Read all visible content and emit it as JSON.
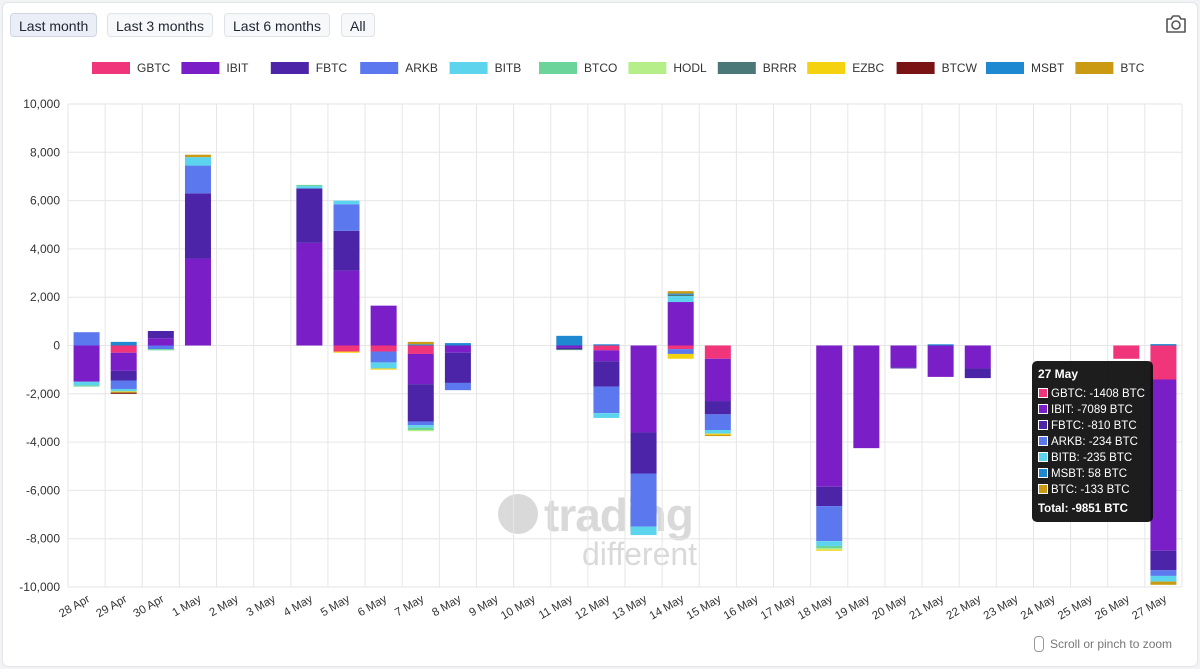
{
  "range_buttons": [
    {
      "label": "Last month",
      "active": true
    },
    {
      "label": "Last 3 months",
      "active": false
    },
    {
      "label": "Last 6 months",
      "active": false
    },
    {
      "label": "All",
      "active": false
    }
  ],
  "icons": {
    "camera": "camera-icon",
    "scroll": "phone-icon"
  },
  "watermark": {
    "line1": "trading",
    "line2": "different"
  },
  "scroll_hint": "Scroll or pinch to zoom",
  "chart_data": {
    "type": "bar",
    "stacked": true,
    "ylim": [
      -10000,
      10000
    ],
    "yticks": [
      10000,
      8000,
      6000,
      4000,
      2000,
      0,
      -2000,
      -4000,
      -6000,
      -8000,
      -10000
    ],
    "grid": true,
    "legend_position": "top",
    "categories": [
      "28 Apr",
      "29 Apr",
      "30 Apr",
      "1 May",
      "2 May",
      "3 May",
      "4 May",
      "5 May",
      "6 May",
      "7 May",
      "8 May",
      "9 May",
      "10 May",
      "11 May",
      "12 May",
      "13 May",
      "14 May",
      "15 May",
      "16 May",
      "17 May",
      "18 May",
      "19 May",
      "20 May",
      "21 May",
      "22 May",
      "23 May",
      "24 May",
      "25 May",
      "26 May",
      "27 May"
    ],
    "series": [
      {
        "name": "GBTC",
        "color": "#f0357a",
        "values": [
          0,
          -300,
          0,
          0,
          0,
          0,
          0,
          -250,
          -250,
          -350,
          0,
          0,
          0,
          0,
          -200,
          0,
          -150,
          -550,
          0,
          0,
          0,
          0,
          0,
          0,
          0,
          0,
          0,
          0,
          -550,
          -1408
        ]
      },
      {
        "name": "IBIT",
        "color": "#7a1fc7",
        "values": [
          -1500,
          -750,
          300,
          3600,
          0,
          0,
          4250,
          3100,
          1650,
          -1250,
          -300,
          0,
          0,
          -100,
          -450,
          -3600,
          1800,
          -1750,
          0,
          0,
          -5850,
          -4250,
          -900,
          -1300,
          -950,
          0,
          0,
          0,
          0,
          -7089
        ]
      },
      {
        "name": "FBTC",
        "color": "#4c24a8",
        "values": [
          0,
          -400,
          300,
          2700,
          0,
          0,
          2250,
          1650,
          0,
          -1550,
          -1250,
          0,
          0,
          -50,
          -1050,
          -1700,
          0,
          -550,
          0,
          0,
          -800,
          0,
          -50,
          0,
          -400,
          0,
          0,
          0,
          0,
          -810
        ]
      },
      {
        "name": "ARKB",
        "color": "#5b78ee",
        "values": [
          550,
          -350,
          -150,
          1150,
          0,
          0,
          0,
          1100,
          -450,
          -150,
          -300,
          0,
          0,
          0,
          -1100,
          -2200,
          -200,
          -650,
          0,
          0,
          -1450,
          0,
          0,
          0,
          0,
          0,
          0,
          0,
          0,
          -234
        ]
      },
      {
        "name": "BITB",
        "color": "#5dd4ee",
        "values": [
          -150,
          -100,
          0,
          350,
          0,
          0,
          100,
          150,
          -250,
          -100,
          0,
          0,
          0,
          0,
          -200,
          -350,
          250,
          -150,
          0,
          0,
          -200,
          0,
          0,
          0,
          0,
          0,
          0,
          0,
          0,
          -235
        ]
      },
      {
        "name": "BTCO",
        "color": "#6ad49b",
        "values": [
          -50,
          0,
          -50,
          0,
          0,
          0,
          50,
          0,
          0,
          -100,
          0,
          0,
          0,
          0,
          0,
          0,
          0,
          0,
          0,
          0,
          -100,
          0,
          0,
          0,
          0,
          0,
          0,
          0,
          0,
          0
        ]
      },
      {
        "name": "HODL",
        "color": "#b6ee8a",
        "values": [
          0,
          0,
          0,
          0,
          0,
          0,
          0,
          0,
          0,
          -50,
          0,
          0,
          0,
          0,
          0,
          0,
          0,
          0,
          0,
          0,
          -50,
          0,
          0,
          0,
          0,
          0,
          0,
          0,
          0,
          0
        ]
      },
      {
        "name": "BRRR",
        "color": "#4a7878",
        "values": [
          0,
          0,
          0,
          0,
          0,
          0,
          0,
          0,
          0,
          0,
          0,
          0,
          0,
          -40,
          0,
          0,
          50,
          0,
          0,
          0,
          0,
          0,
          0,
          0,
          0,
          0,
          0,
          0,
          0,
          0
        ]
      },
      {
        "name": "EZBC",
        "color": "#f5d20f",
        "values": [
          0,
          -50,
          0,
          0,
          0,
          0,
          0,
          -50,
          -50,
          0,
          0,
          0,
          0,
          0,
          0,
          0,
          -200,
          -50,
          0,
          0,
          -50,
          0,
          0,
          0,
          0,
          0,
          0,
          0,
          0,
          0
        ]
      },
      {
        "name": "BTCW",
        "color": "#7a1414",
        "values": [
          0,
          -50,
          0,
          0,
          0,
          0,
          0,
          0,
          0,
          0,
          0,
          0,
          0,
          0,
          0,
          0,
          0,
          0,
          0,
          0,
          0,
          0,
          0,
          0,
          0,
          0,
          0,
          0,
          0,
          0
        ]
      },
      {
        "name": "MSBT",
        "color": "#1e88d0",
        "values": [
          0,
          150,
          0,
          0,
          0,
          0,
          0,
          0,
          0,
          50,
          100,
          0,
          0,
          400,
          50,
          0,
          50,
          0,
          0,
          0,
          0,
          0,
          0,
          50,
          0,
          0,
          0,
          0,
          0,
          58
        ]
      },
      {
        "name": "BTC",
        "color": "#c99a12",
        "values": [
          0,
          0,
          0,
          100,
          0,
          0,
          0,
          0,
          0,
          100,
          0,
          0,
          0,
          0,
          0,
          0,
          100,
          -50,
          0,
          0,
          0,
          0,
          0,
          0,
          0,
          0,
          0,
          0,
          0,
          -133
        ]
      }
    ],
    "tooltip": {
      "date": "27 May",
      "rows": [
        {
          "label": "GBTC: -1408 BTC",
          "color": "#f0357a"
        },
        {
          "label": "IBIT: -7089 BTC",
          "color": "#7a1fc7"
        },
        {
          "label": "FBTC: -810 BTC",
          "color": "#4c24a8"
        },
        {
          "label": "ARKB: -234 BTC",
          "color": "#5b78ee"
        },
        {
          "label": "BITB: -235 BTC",
          "color": "#5dd4ee"
        },
        {
          "label": "MSBT: 58 BTC",
          "color": "#1e88d0"
        },
        {
          "label": "BTC: -133 BTC",
          "color": "#c99a12"
        }
      ],
      "total": "Total: -9851 BTC"
    }
  }
}
